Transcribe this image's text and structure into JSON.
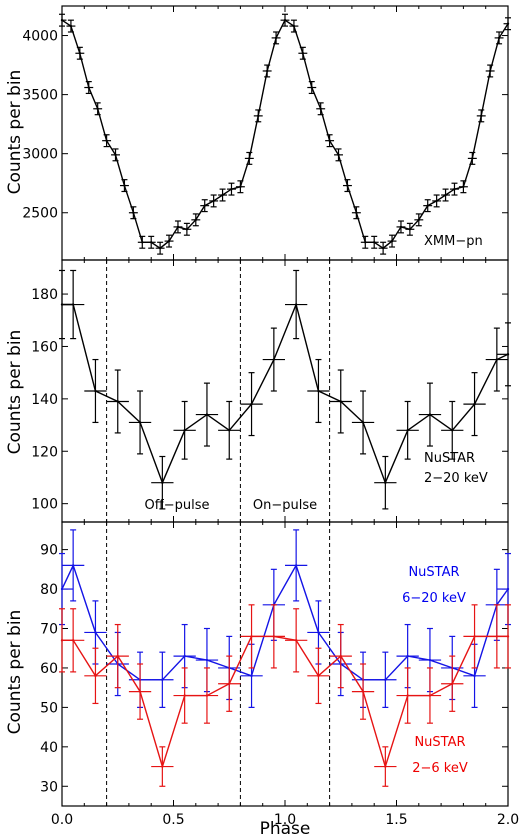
{
  "chart_data": [
    {
      "type": "line",
      "ylabel": "Counts per bin",
      "xlim": [
        0,
        2
      ],
      "ylim": [
        2100,
        4250
      ],
      "yticks": [
        2500,
        3000,
        3500,
        4000
      ],
      "annotations": [
        {
          "text": "XMM−pn",
          "color": "#000000"
        }
      ],
      "series": [
        {
          "color": "#000000",
          "x": [
            0.0,
            0.04,
            0.08,
            0.12,
            0.16,
            0.2,
            0.24,
            0.28,
            0.32,
            0.36,
            0.4,
            0.44,
            0.48,
            0.52,
            0.56,
            0.6,
            0.64,
            0.68,
            0.72,
            0.76,
            0.8,
            0.84,
            0.88,
            0.92,
            0.96,
            1.0,
            1.04,
            1.08,
            1.12,
            1.16,
            1.2,
            1.24,
            1.28,
            1.32,
            1.36,
            1.4,
            1.44,
            1.48,
            1.52,
            1.56,
            1.6,
            1.64,
            1.68,
            1.72,
            1.76,
            1.8,
            1.84,
            1.88,
            1.92,
            1.96,
            2.0
          ],
          "y": [
            4130,
            4080,
            3850,
            3560,
            3380,
            3110,
            2990,
            2730,
            2500,
            2250,
            2250,
            2200,
            2260,
            2380,
            2360,
            2440,
            2560,
            2600,
            2650,
            2700,
            2720,
            2960,
            3320,
            3700,
            3980,
            4130,
            4080,
            3850,
            3560,
            3380,
            3110,
            2990,
            2730,
            2500,
            2250,
            2250,
            2200,
            2260,
            2380,
            2360,
            2440,
            2560,
            2600,
            2650,
            2700,
            2720,
            2960,
            3320,
            3700,
            3980,
            4100
          ],
          "yerr": 50,
          "xerr": 0.02
        }
      ]
    },
    {
      "type": "line",
      "ylabel": "Counts per bin",
      "xlim": [
        0,
        2
      ],
      "ylim": [
        93,
        193
      ],
      "yticks": [
        100,
        120,
        140,
        160,
        180
      ],
      "annotations": [
        {
          "text": "NuSTAR",
          "color": "#000000"
        },
        {
          "text": "2−20 keV",
          "color": "#000000"
        }
      ],
      "vlines": [
        0.2,
        0.8,
        1.2
      ],
      "region_labels": [
        "Off−pulse",
        "On−pulse"
      ],
      "series": [
        {
          "color": "#000000",
          "x": [
            0.0,
            0.05,
            0.15,
            0.25,
            0.35,
            0.45,
            0.55,
            0.65,
            0.75,
            0.85,
            0.95,
            1.05,
            1.15,
            1.25,
            1.35,
            1.45,
            1.55,
            1.65,
            1.75,
            1.85,
            1.95,
            2.0
          ],
          "y": [
            176,
            176,
            143,
            139,
            131,
            108,
            128,
            134,
            128,
            138,
            155,
            176,
            143,
            139,
            131,
            108,
            128,
            134,
            128,
            138,
            155,
            157
          ],
          "yerr": [
            13,
            13,
            12,
            12,
            12,
            10,
            11,
            12,
            11,
            12,
            12,
            13,
            12,
            12,
            12,
            10,
            11,
            12,
            11,
            12,
            12,
            12
          ],
          "xerr": 0.05
        }
      ]
    },
    {
      "type": "line",
      "xlabel": "Phase",
      "ylabel": "Counts per bin",
      "xlim": [
        0,
        2
      ],
      "ylim": [
        25,
        97
      ],
      "yticks": [
        30,
        40,
        50,
        60,
        70,
        80,
        90
      ],
      "xticks": [
        0.0,
        0.5,
        1.0,
        1.5,
        2.0
      ],
      "vlines": [
        0.2,
        0.8,
        1.2
      ],
      "annotations": [
        {
          "text": "NuSTAR",
          "color": "#0000ee"
        },
        {
          "text": "6−20 keV",
          "color": "#0000ee"
        },
        {
          "text": "NuSTAR",
          "color": "#ee0000"
        },
        {
          "text": "2−6 keV",
          "color": "#ee0000"
        }
      ],
      "series": [
        {
          "name": "NuSTAR 6−20 keV",
          "color": "#1414e6",
          "x": [
            0.0,
            0.05,
            0.15,
            0.25,
            0.35,
            0.45,
            0.55,
            0.65,
            0.75,
            0.85,
            0.95,
            1.05,
            1.15,
            1.25,
            1.35,
            1.45,
            1.55,
            1.65,
            1.75,
            1.85,
            1.95,
            2.0
          ],
          "y": [
            80,
            86,
            69,
            61,
            57,
            57,
            63,
            62,
            60,
            58,
            76,
            86,
            69,
            61,
            57,
            57,
            63,
            62,
            60,
            58,
            76,
            80
          ],
          "yerr": [
            9,
            9,
            8,
            8,
            7,
            7,
            8,
            8,
            8,
            8,
            9,
            9,
            8,
            8,
            7,
            7,
            8,
            8,
            8,
            8,
            9,
            9
          ],
          "xerr": 0.05
        },
        {
          "name": "NuSTAR 2−6 keV",
          "color": "#e61414",
          "x": [
            0.0,
            0.05,
            0.15,
            0.25,
            0.35,
            0.45,
            0.55,
            0.65,
            0.75,
            0.85,
            0.95,
            1.05,
            1.15,
            1.25,
            1.35,
            1.45,
            1.55,
            1.65,
            1.75,
            1.85,
            1.95,
            2.0
          ],
          "y": [
            67,
            67,
            58,
            63,
            54,
            35,
            53,
            53,
            56,
            68,
            68,
            67,
            58,
            63,
            54,
            35,
            53,
            53,
            56,
            68,
            68,
            68
          ],
          "yerr": [
            8,
            8,
            7,
            8,
            7,
            5,
            7,
            7,
            7,
            8,
            8,
            8,
            7,
            8,
            7,
            5,
            7,
            7,
            7,
            8,
            8,
            8
          ],
          "xerr": 0.05
        }
      ]
    }
  ]
}
